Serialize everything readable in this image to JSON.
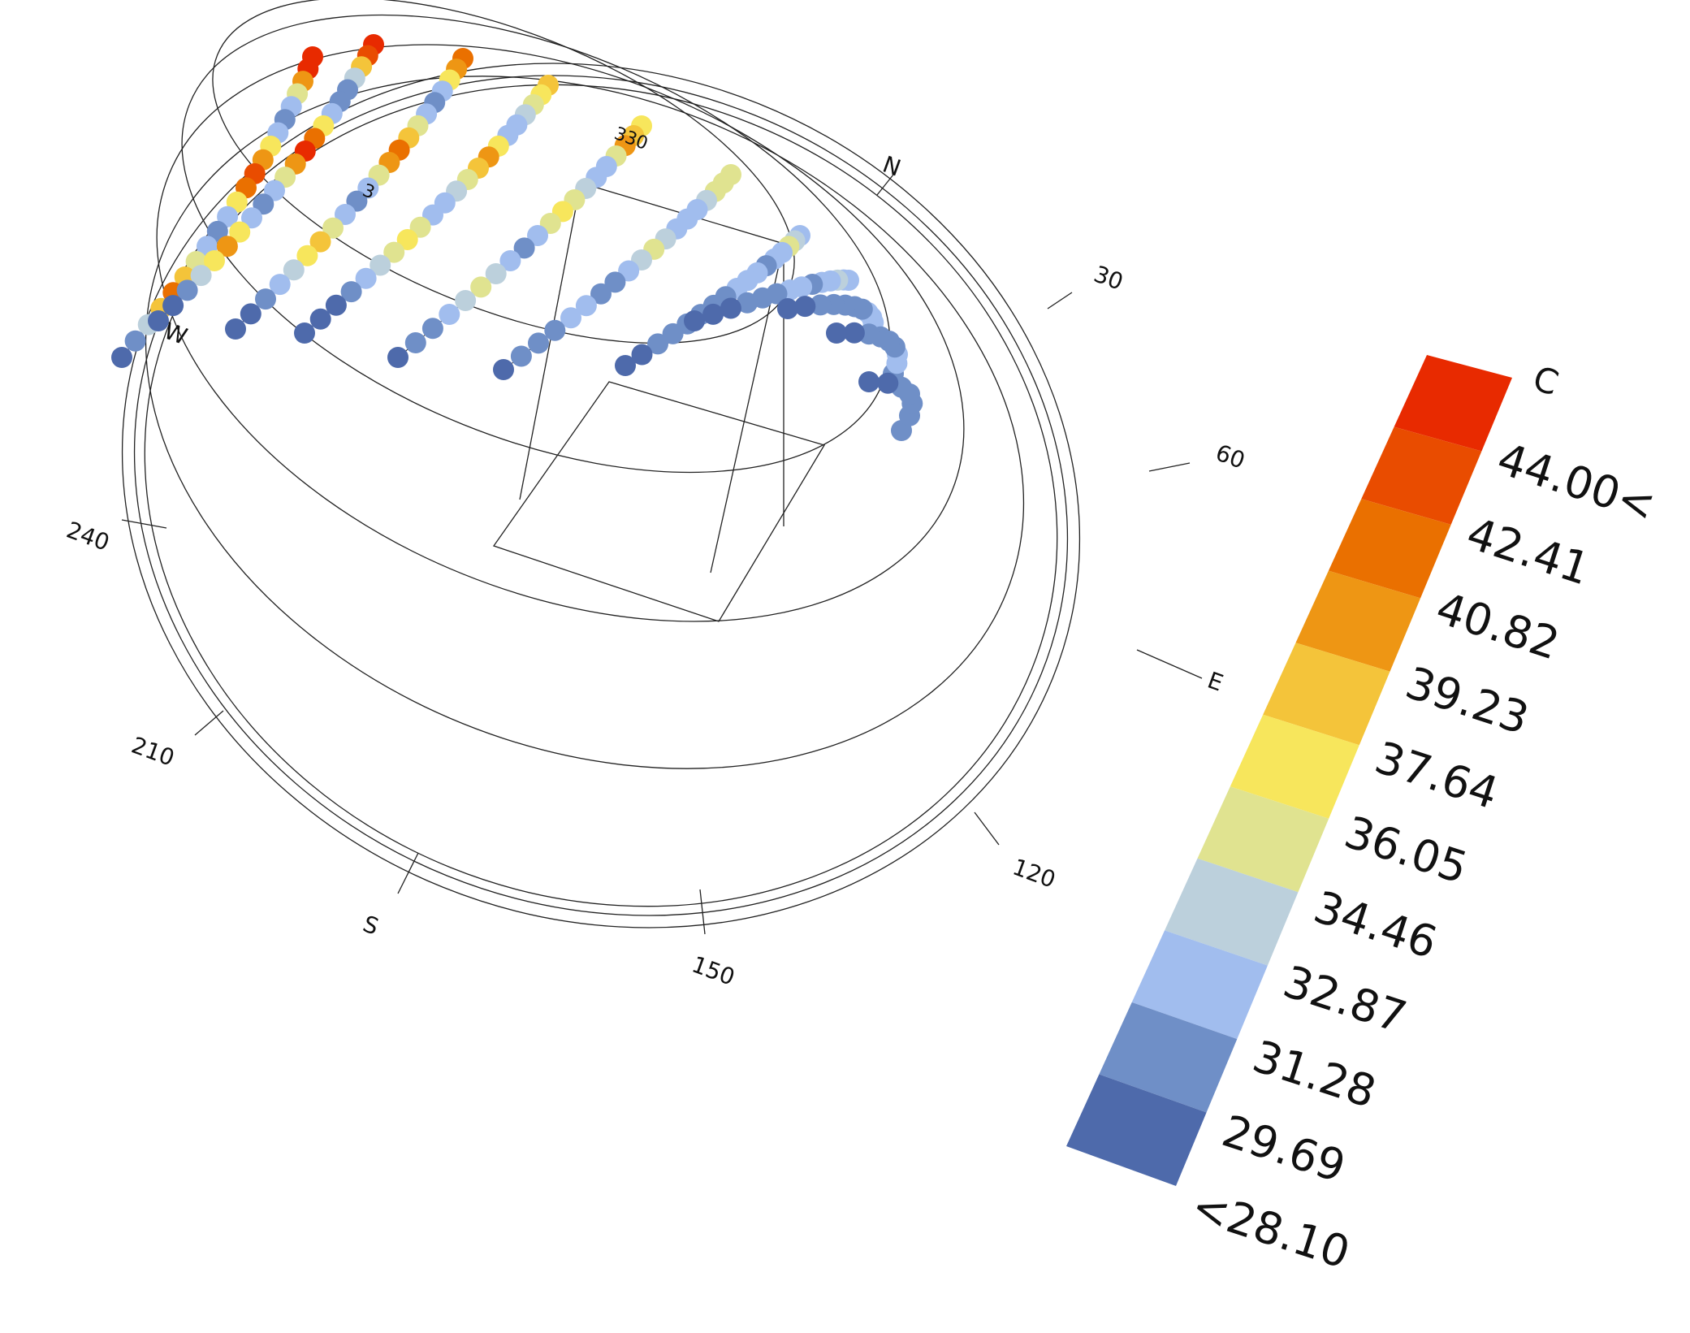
{
  "chart_data": {
    "type": "scatter",
    "title": "",
    "variant": "3D sun-path diagram with hourly points coloured by temperature",
    "compass": {
      "cardinals": [
        "N",
        "E",
        "S",
        "W"
      ],
      "degree_labels": [
        "30",
        "60",
        "120",
        "150",
        "210",
        "240",
        "330",
        "3"
      ]
    },
    "legend": {
      "unit": "C",
      "ticks": [
        "44.00<",
        "42.41",
        "40.82",
        "39.23",
        "37.64",
        "36.05",
        "34.46",
        "32.87",
        "31.28",
        "29.69",
        "<28.10"
      ],
      "colors": [
        "#e82a00",
        "#e94c00",
        "#ea7000",
        "#ee9614",
        "#f4c43a",
        "#f7e65c",
        "#e0e390",
        "#bcd0dc",
        "#a1bdee",
        "#6f8fc7",
        "#4e6aab"
      ],
      "placement": "right"
    },
    "series": [
      {
        "values": [
          44.5,
          43.0,
          39.0,
          33.0,
          30.0,
          29.0,
          30.5,
          35.0,
          38.5,
          42.0,
          40.0,
          36.0,
          31.0,
          29.0,
          30.0,
          34.0,
          37.0,
          39.5,
          36.5,
          32.0,
          29.0,
          28.0
        ]
      },
      {
        "values": [
          43.0,
          41.0,
          37.0,
          32.0,
          29.5,
          29.0,
          31.0,
          36.0,
          40.0,
          42.5,
          39.0,
          34.0,
          30.0,
          28.5,
          30.5,
          35.0,
          38.0,
          36.0,
          32.0,
          29.0,
          28.0,
          27.5
        ]
      },
      {
        "values": [
          40.0,
          38.0,
          35.0,
          31.0,
          29.0,
          30.0,
          33.0,
          37.5,
          40.0,
          38.0,
          34.0,
          31.0,
          29.5,
          30.0,
          33.5,
          36.5,
          35.0,
          32.5,
          30.0,
          28.5,
          28.0,
          27.5
        ]
      },
      {
        "values": [
          37.0,
          36.0,
          34.0,
          31.5,
          30.0,
          31.0,
          34.5,
          38.0,
          37.0,
          34.0,
          31.5,
          30.0,
          31.0,
          33.0,
          35.5,
          34.0,
          32.0,
          30.0,
          29.0,
          28.0,
          28.0,
          27.5
        ]
      },
      {
        "values": [
          35.0,
          37.0,
          38.0,
          34.0,
          31.0,
          30.0,
          31.5,
          34.0,
          36.0,
          33.0,
          31.0,
          29.5,
          30.5,
          32.0,
          33.0,
          31.5,
          30.0,
          29.0,
          28.5,
          28.0
        ]
      },
      {
        "values": [
          33.0,
          34.0,
          33.5,
          32.0,
          30.5,
          30.0,
          31.0,
          32.5,
          33.0,
          31.5,
          30.5,
          29.5,
          29.0,
          30.0,
          30.5,
          29.5,
          29.0,
          28.5,
          28.0
        ]
      },
      {
        "values": [
          31.0,
          32.5,
          33.0,
          31.0,
          30.0,
          29.5,
          30.0,
          31.0,
          30.5,
          29.5,
          29.0,
          28.5,
          28.5,
          29.0,
          28.5,
          28.0,
          28.0
        ]
      },
      {
        "values": [
          30.5,
          31.0,
          31.5,
          30.5,
          30.0,
          29.5,
          30.0,
          30.5,
          29.5,
          29.0,
          28.5,
          28.0,
          28.0,
          28.0
        ]
      },
      {
        "values": [
          30.0,
          30.5,
          31.0,
          30.0,
          29.5,
          29.0,
          29.5,
          29.0,
          28.5,
          28.0,
          28.0
        ]
      },
      {
        "values": [
          29.5,
          30.0,
          30.5,
          29.5,
          29.0,
          28.5,
          28.5,
          28.0,
          28.0
        ]
      },
      {
        "values": [
          29.0,
          29.5,
          29.5,
          29.0,
          28.5,
          28.0,
          28.0
        ]
      }
    ]
  }
}
